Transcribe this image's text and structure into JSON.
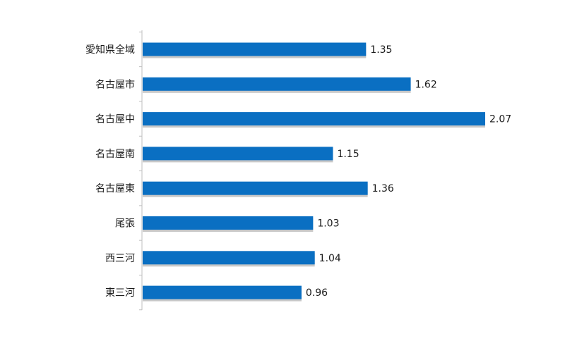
{
  "chart_data": {
    "type": "bar",
    "orientation": "horizontal",
    "categories": [
      "愛知県全域",
      "名古屋市",
      "名古屋中",
      "名古屋南",
      "名古屋東",
      "尾張",
      "西三河",
      "東三河"
    ],
    "values": [
      1.35,
      1.62,
      2.07,
      1.15,
      1.36,
      1.03,
      1.04,
      0.96
    ],
    "value_labels": [
      "1.35",
      "1.62",
      "2.07",
      "1.15",
      "1.36",
      "1.03",
      "1.04",
      "0.96"
    ],
    "title": "",
    "xlabel": "",
    "ylabel": "",
    "xlim": [
      0,
      2.5
    ],
    "grid": false,
    "legend": "none",
    "bar_color": "#0a6fc2",
    "bar_shadow_color": "#9a9a9a",
    "axis_color": "#bfbfbf"
  }
}
